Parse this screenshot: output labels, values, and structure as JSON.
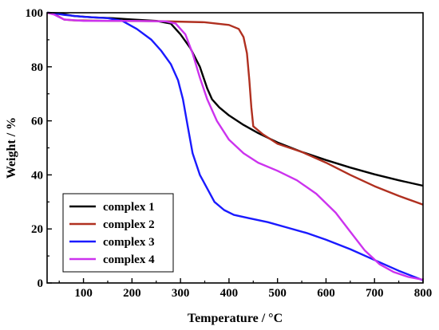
{
  "chart_data": {
    "type": "line",
    "title": "",
    "xlabel": "Temperature / °C",
    "ylabel": "Weight / %",
    "xlim": [
      25,
      800
    ],
    "ylim": [
      0,
      100
    ],
    "xticks": [
      100,
      200,
      300,
      400,
      500,
      600,
      700,
      800
    ],
    "yticks": [
      0,
      20,
      40,
      60,
      80,
      100
    ],
    "grid": false,
    "legend_position": "bottom-left",
    "series": [
      {
        "name": "complex 1",
        "color": "#000000",
        "points": [
          [
            25,
            100
          ],
          [
            50,
            99.8
          ],
          [
            80,
            98.8
          ],
          [
            120,
            98.3
          ],
          [
            160,
            98
          ],
          [
            200,
            97.5
          ],
          [
            250,
            97
          ],
          [
            280,
            96
          ],
          [
            300,
            92
          ],
          [
            320,
            87
          ],
          [
            340,
            80
          ],
          [
            355,
            72
          ],
          [
            365,
            68
          ],
          [
            380,
            65
          ],
          [
            400,
            62
          ],
          [
            430,
            58.5
          ],
          [
            460,
            55.5
          ],
          [
            500,
            52
          ],
          [
            550,
            48.5
          ],
          [
            600,
            45.5
          ],
          [
            650,
            42.7
          ],
          [
            700,
            40.2
          ],
          [
            750,
            38
          ],
          [
            800,
            36
          ]
        ]
      },
      {
        "name": "complex 2",
        "color": "#b03020",
        "points": [
          [
            25,
            100
          ],
          [
            40,
            99.5
          ],
          [
            60,
            97.5
          ],
          [
            80,
            97.2
          ],
          [
            150,
            97
          ],
          [
            250,
            96.9
          ],
          [
            350,
            96.5
          ],
          [
            400,
            95.5
          ],
          [
            420,
            94
          ],
          [
            430,
            91
          ],
          [
            437,
            85
          ],
          [
            442,
            75
          ],
          [
            446,
            65
          ],
          [
            450,
            58
          ],
          [
            470,
            55
          ],
          [
            500,
            51.5
          ],
          [
            550,
            48.5
          ],
          [
            600,
            44.5
          ],
          [
            650,
            40
          ],
          [
            700,
            35.8
          ],
          [
            750,
            32.2
          ],
          [
            800,
            29
          ]
        ]
      },
      {
        "name": "complex 3",
        "color": "#1a1aff",
        "points": [
          [
            25,
            100
          ],
          [
            40,
            99.8
          ],
          [
            60,
            99.2
          ],
          [
            100,
            98.5
          ],
          [
            150,
            98
          ],
          [
            180,
            97
          ],
          [
            210,
            94
          ],
          [
            240,
            90
          ],
          [
            260,
            86
          ],
          [
            280,
            81
          ],
          [
            295,
            75
          ],
          [
            305,
            68
          ],
          [
            315,
            58
          ],
          [
            325,
            48
          ],
          [
            340,
            40
          ],
          [
            355,
            35
          ],
          [
            370,
            30
          ],
          [
            390,
            27
          ],
          [
            410,
            25.2
          ],
          [
            440,
            24
          ],
          [
            480,
            22.5
          ],
          [
            520,
            20.5
          ],
          [
            560,
            18.5
          ],
          [
            600,
            16
          ],
          [
            650,
            12.5
          ],
          [
            700,
            8.5
          ],
          [
            750,
            4.5
          ],
          [
            800,
            1
          ]
        ]
      },
      {
        "name": "complex 4",
        "color": "#cc33ee",
        "points": [
          [
            25,
            100
          ],
          [
            40,
            99.3
          ],
          [
            60,
            97.5
          ],
          [
            100,
            97
          ],
          [
            200,
            97
          ],
          [
            270,
            96.8
          ],
          [
            290,
            96
          ],
          [
            310,
            92
          ],
          [
            325,
            85
          ],
          [
            340,
            76
          ],
          [
            355,
            68
          ],
          [
            375,
            60
          ],
          [
            400,
            53
          ],
          [
            430,
            48
          ],
          [
            460,
            44.5
          ],
          [
            500,
            41.5
          ],
          [
            540,
            38
          ],
          [
            580,
            33
          ],
          [
            620,
            26
          ],
          [
            650,
            19
          ],
          [
            680,
            12
          ],
          [
            710,
            7
          ],
          [
            740,
            4
          ],
          [
            770,
            2.2
          ],
          [
            800,
            1.2
          ]
        ]
      }
    ]
  }
}
